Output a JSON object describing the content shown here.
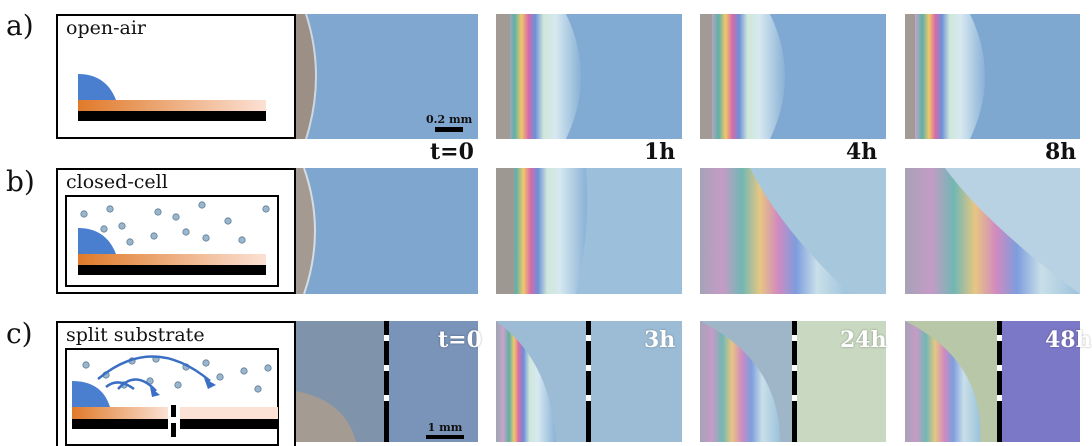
{
  "rows": [
    {
      "label": "a)",
      "condition": "open-air",
      "scale_bar": "0.2 mm",
      "times": [
        "t=0",
        "1h",
        "4h",
        "8h"
      ]
    },
    {
      "label": "b)",
      "condition": "closed-cell"
    },
    {
      "label": "c)",
      "condition": "split substrate",
      "scale_bar": "1 mm",
      "times": [
        "t=0",
        "3h",
        "24h",
        "48h"
      ]
    }
  ],
  "colors": {
    "droplet": "#4a7fd0",
    "substrate_film": "#e07a2a",
    "substrate_base": "#000000",
    "vapor_dots": "#9ab6cc",
    "arrows": "#3b6fc4",
    "image_blue": "#7ea6cf"
  }
}
